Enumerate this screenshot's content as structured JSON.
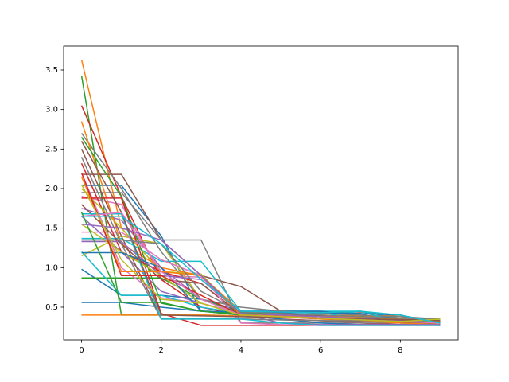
{
  "chart_data": {
    "type": "line",
    "x": [
      0,
      1,
      2,
      3,
      4,
      5,
      6,
      7,
      8,
      9
    ],
    "xlim": [
      -0.45,
      9.45
    ],
    "xticks": [
      0,
      2,
      4,
      6,
      8
    ],
    "ylim": [
      0.087,
      3.802
    ],
    "yticks": [
      0.5,
      {
        "value": 1,
        "label": "1.0"
      },
      1.5,
      {
        "value": 2,
        "label": "2.0"
      },
      2.5,
      {
        "value": 3,
        "label": "3.0"
      },
      3.5
    ],
    "series": [
      {
        "color": "#1f77b4",
        "values": [
          2.04,
          2.04,
          1.4,
          0.45,
          0.44,
          0.43,
          0.43,
          0.42,
          0.3,
          0.28
        ]
      },
      {
        "color": "#ff7f0e",
        "values": [
          3.63,
          1.5,
          0.95,
          0.9,
          0.45,
          0.4,
          0.4,
          0.39,
          0.38,
          0.3
        ]
      },
      {
        "color": "#2ca02c",
        "values": [
          3.43,
          0.4,
          0.4,
          0.4,
          0.39,
          0.38,
          0.36,
          0.35,
          0.34,
          0.33
        ]
      },
      {
        "color": "#d62728",
        "values": [
          3.05,
          1.9,
          0.85,
          0.5,
          0.4,
          0.35,
          0.33,
          0.3,
          0.28,
          0.27
        ]
      },
      {
        "color": "#9467bd",
        "values": [
          1.75,
          1.6,
          1.0,
          0.6,
          0.45,
          0.4,
          0.38,
          0.36,
          0.3,
          0.28
        ]
      },
      {
        "color": "#8c564b",
        "values": [
          2.18,
          2.18,
          1.35,
          0.9,
          0.76,
          0.45,
          0.44,
          0.44,
          0.4,
          0.3
        ]
      },
      {
        "color": "#e377c2",
        "values": [
          1.9,
          1.8,
          0.9,
          0.88,
          0.42,
          0.4,
          0.38,
          0.35,
          0.3,
          0.28
        ]
      },
      {
        "color": "#7f7f7f",
        "values": [
          1.95,
          1.95,
          1.35,
          1.35,
          0.3,
          0.3,
          0.3,
          0.3,
          0.3,
          0.3
        ]
      },
      {
        "color": "#bcbd22",
        "values": [
          1.15,
          1.4,
          1.3,
          0.6,
          0.45,
          0.38,
          0.36,
          0.35,
          0.35,
          0.35
        ]
      },
      {
        "color": "#17becf",
        "values": [
          1.37,
          1.37,
          1.08,
          1.08,
          0.45,
          0.45,
          0.45,
          0.45,
          0.35,
          0.33
        ]
      },
      {
        "color": "#1f77b4",
        "values": [
          0.98,
          0.65,
          0.65,
          0.6,
          0.45,
          0.45,
          0.45,
          0.4,
          0.36,
          0.3
        ]
      },
      {
        "color": "#ff7f0e",
        "values": [
          0.4,
          0.4,
          0.4,
          0.4,
          0.39,
          0.38,
          0.36,
          0.38,
          0.4,
          0.27
        ]
      },
      {
        "color": "#2ca02c",
        "values": [
          0.87,
          0.87,
          0.87,
          0.6,
          0.43,
          0.42,
          0.4,
          0.38,
          0.36,
          0.35
        ]
      },
      {
        "color": "#d62728",
        "values": [
          2.32,
          1.2,
          0.95,
          0.8,
          0.4,
          0.38,
          0.36,
          0.35,
          0.33,
          0.3
        ]
      },
      {
        "color": "#9467bd",
        "values": [
          1.65,
          1.2,
          0.7,
          0.55,
          0.42,
          0.4,
          0.39,
          0.36,
          0.33,
          0.3
        ]
      },
      {
        "color": "#8c564b",
        "values": [
          2.5,
          1.4,
          0.36,
          0.36,
          0.35,
          0.34,
          0.33,
          0.32,
          0.31,
          0.3
        ]
      },
      {
        "color": "#e377c2",
        "values": [
          2.2,
          1.0,
          0.62,
          0.55,
          0.42,
          0.38,
          0.36,
          0.35,
          0.32,
          0.3
        ]
      },
      {
        "color": "#7f7f7f",
        "values": [
          2.7,
          2.0,
          1.2,
          0.6,
          0.5,
          0.45,
          0.42,
          0.4,
          0.38,
          0.35
        ]
      },
      {
        "color": "#bcbd22",
        "values": [
          2.0,
          1.5,
          0.95,
          0.92,
          0.4,
          0.38,
          0.35,
          0.34,
          0.33,
          0.32
        ]
      },
      {
        "color": "#17becf",
        "values": [
          1.2,
          0.65,
          0.65,
          0.5,
          0.42,
          0.4,
          0.38,
          0.45,
          0.3,
          0.28
        ]
      },
      {
        "color": "#1f77b4",
        "values": [
          0.56,
          0.56,
          0.5,
          0.45,
          0.4,
          0.35,
          0.3,
          0.28,
          0.28,
          0.28
        ]
      },
      {
        "color": "#ff7f0e",
        "values": [
          2.85,
          1.3,
          1.0,
          0.9,
          0.4,
          0.38,
          0.35,
          0.33,
          0.3,
          0.28
        ]
      },
      {
        "color": "#2ca02c",
        "values": [
          2.65,
          1.9,
          0.55,
          0.45,
          0.42,
          0.4,
          0.38,
          0.36,
          0.34,
          0.33
        ]
      },
      {
        "color": "#d62728",
        "values": [
          1.88,
          1.88,
          0.42,
          0.27,
          0.27,
          0.27,
          0.27,
          0.27,
          0.27,
          0.27
        ]
      },
      {
        "color": "#9467bd",
        "values": [
          1.33,
          1.33,
          0.9,
          0.85,
          0.42,
          0.3,
          0.28,
          0.28,
          0.28,
          0.28
        ]
      },
      {
        "color": "#8c564b",
        "values": [
          1.8,
          1.3,
          0.85,
          0.8,
          0.41,
          0.4,
          0.39,
          0.37,
          0.35,
          0.33
        ]
      },
      {
        "color": "#e377c2",
        "values": [
          1.45,
          1.45,
          1.1,
          0.9,
          0.3,
          0.28,
          0.27,
          0.27,
          0.27,
          0.27
        ]
      },
      {
        "color": "#7f7f7f",
        "values": [
          2.4,
          1.3,
          0.35,
          0.35,
          0.35,
          0.34,
          0.33,
          0.33,
          0.33,
          0.33
        ]
      },
      {
        "color": "#bcbd22",
        "values": [
          1.55,
          1.2,
          0.9,
          0.55,
          0.4,
          0.39,
          0.38,
          0.37,
          0.36,
          0.35
        ]
      },
      {
        "color": "#17becf",
        "values": [
          1.68,
          1.68,
          0.35,
          0.35,
          0.35,
          0.3,
          0.27,
          0.27,
          0.27,
          0.27
        ]
      },
      {
        "color": "#1f77b4",
        "values": [
          1.19,
          1.19,
          1.0,
          0.45,
          0.44,
          0.43,
          0.43,
          0.42,
          0.4,
          0.3
        ]
      },
      {
        "color": "#ff7f0e",
        "values": [
          2.15,
          0.95,
          0.95,
          0.9,
          0.4,
          0.39,
          0.38,
          0.37,
          0.36,
          0.35
        ]
      },
      {
        "color": "#2ca02c",
        "values": [
          1.7,
          0.56,
          0.56,
          0.45,
          0.4,
          0.38,
          0.36,
          0.34,
          0.32,
          0.3
        ]
      },
      {
        "color": "#d62728",
        "values": [
          2.2,
          0.9,
          0.9,
          0.65,
          0.4,
          0.38,
          0.36,
          0.34,
          0.32,
          0.3
        ]
      },
      {
        "color": "#9467bd",
        "values": [
          1.55,
          1.5,
          1.35,
          0.9,
          0.42,
          0.4,
          0.38,
          0.36,
          0.33,
          0.3
        ]
      },
      {
        "color": "#8c564b",
        "values": [
          2.6,
          1.7,
          0.4,
          0.39,
          0.38,
          0.37,
          0.36,
          0.35,
          0.34,
          0.33
        ]
      },
      {
        "color": "#e377c2",
        "values": [
          1.65,
          1.7,
          0.95,
          0.6,
          0.4,
          0.38,
          0.36,
          0.34,
          0.32,
          0.3
        ]
      },
      {
        "color": "#7f7f7f",
        "values": [
          1.35,
          1.35,
          1.3,
          0.7,
          0.44,
          0.42,
          0.4,
          0.38,
          0.36,
          0.35
        ]
      },
      {
        "color": "#bcbd22",
        "values": [
          2.05,
          1.1,
          0.6,
          0.55,
          0.4,
          0.38,
          0.36,
          0.34,
          0.32,
          0.35
        ]
      },
      {
        "color": "#17becf",
        "values": [
          1.65,
          1.65,
          1.3,
          0.85,
          0.45,
          0.44,
          0.43,
          0.45,
          0.4,
          0.3
        ]
      }
    ]
  }
}
